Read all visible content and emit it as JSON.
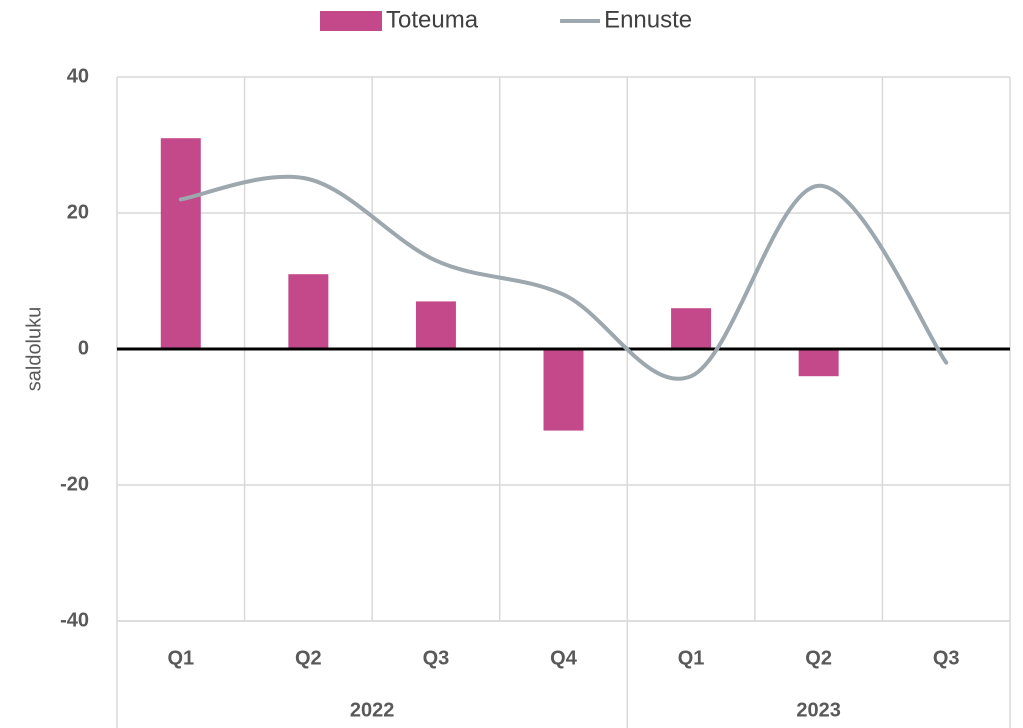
{
  "chart_data": {
    "type": "bar_line",
    "y_axis_label": "saldoluku",
    "category_groups": [
      {
        "label": "2022",
        "categories": [
          "Q1",
          "Q2",
          "Q3",
          "Q4"
        ]
      },
      {
        "label": "2023",
        "categories": [
          "Q1",
          "Q2",
          "Q3"
        ]
      }
    ],
    "series": [
      {
        "name": "Toteuma",
        "type": "bar",
        "color": "#c4498a",
        "values": [
          31,
          11,
          7,
          -12,
          6,
          -4,
          null
        ]
      },
      {
        "name": "Ennuste",
        "type": "line",
        "color": "#9ca7ae",
        "smooth": true,
        "values": [
          22,
          25,
          13,
          8,
          -4,
          24,
          -2
        ]
      }
    ],
    "ylim": [
      -40,
      40
    ],
    "yticks": [
      -40,
      -20,
      0,
      20,
      40
    ],
    "grid": true,
    "legend": "top"
  }
}
